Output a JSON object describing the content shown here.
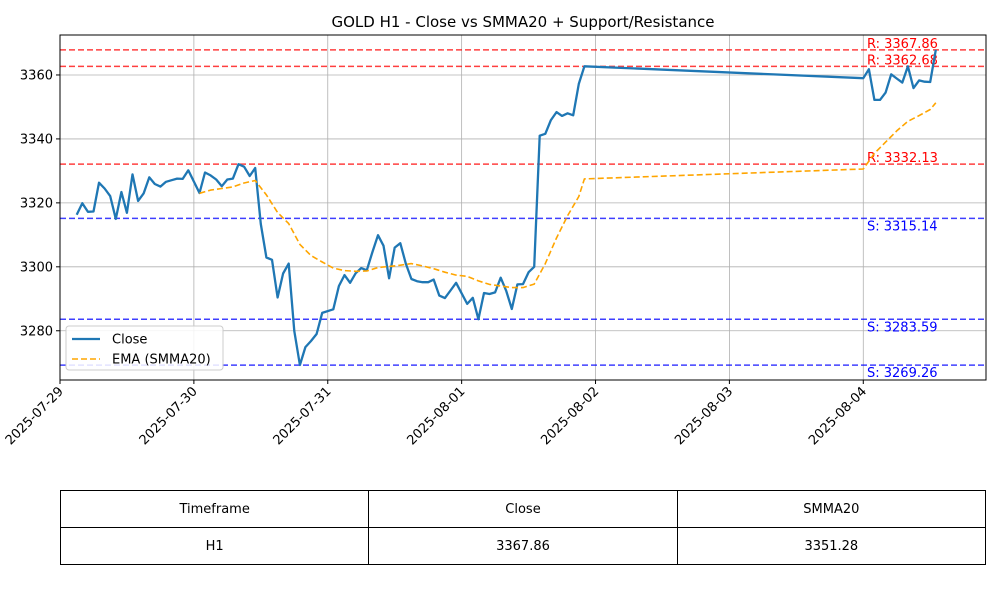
{
  "chart_data": {
    "type": "line",
    "title": "GOLD H1 - Close vs SMMA20 + Support/Resistance",
    "xlabel": "",
    "ylabel": "",
    "x_range": [
      "2025-07-29 00:00",
      "2025-08-04 22:00"
    ],
    "ylim": [
      3264.6,
      3372.5
    ],
    "x_ticks": [
      "2025-07-29",
      "2025-07-30",
      "2025-07-31",
      "2025-08-01",
      "2025-08-02",
      "2025-08-03",
      "2025-08-04"
    ],
    "y_ticks": [
      3280,
      3300,
      3320,
      3340,
      3360
    ],
    "grid": true,
    "legend_position": "lower-left",
    "series": [
      {
        "name": "Close",
        "color": "#1f77b4",
        "style": "solid",
        "points": [
          [
            "2025-07-29 03:00",
            3316.3
          ],
          [
            "2025-07-29 04:00",
            3319.9
          ],
          [
            "2025-07-29 05:00",
            3317.2
          ],
          [
            "2025-07-29 06:00",
            3317.3
          ],
          [
            "2025-07-29 07:00",
            3326.3
          ],
          [
            "2025-07-29 08:00",
            3324.5
          ],
          [
            "2025-07-29 09:00",
            3322.1
          ],
          [
            "2025-07-29 10:00",
            3315.0
          ],
          [
            "2025-07-29 11:00",
            3323.4
          ],
          [
            "2025-07-29 12:00",
            3316.9
          ],
          [
            "2025-07-29 13:00",
            3328.9
          ],
          [
            "2025-07-29 14:00",
            3320.6
          ],
          [
            "2025-07-29 15:00",
            3323.0
          ],
          [
            "2025-07-29 16:00",
            3328.0
          ],
          [
            "2025-07-29 17:00",
            3325.9
          ],
          [
            "2025-07-29 18:00",
            3325.1
          ],
          [
            "2025-07-29 19:00",
            3326.6
          ],
          [
            "2025-07-29 20:00",
            3327.1
          ],
          [
            "2025-07-29 21:00",
            3327.6
          ],
          [
            "2025-07-29 22:00",
            3327.5
          ],
          [
            "2025-07-29 23:00",
            3330.2
          ],
          [
            "2025-07-30 01:00",
            3323.1
          ],
          [
            "2025-07-30 02:00",
            3329.5
          ],
          [
            "2025-07-30 03:00",
            3328.6
          ],
          [
            "2025-07-30 04:00",
            3327.3
          ],
          [
            "2025-07-30 05:00",
            3325.2
          ],
          [
            "2025-07-30 06:00",
            3327.3
          ],
          [
            "2025-07-30 07:00",
            3327.6
          ],
          [
            "2025-07-30 08:00",
            3332.1
          ],
          [
            "2025-07-30 09:00",
            3331.3
          ],
          [
            "2025-07-30 10:00",
            3328.4
          ],
          [
            "2025-07-30 11:00",
            3330.9
          ],
          [
            "2025-07-30 12:00",
            3313.4
          ],
          [
            "2025-07-30 13:00",
            3302.9
          ],
          [
            "2025-07-30 14:00",
            3302.2
          ],
          [
            "2025-07-30 15:00",
            3290.4
          ],
          [
            "2025-07-30 16:00",
            3297.9
          ],
          [
            "2025-07-30 17:00",
            3301.0
          ],
          [
            "2025-07-30 18:00",
            3279.9
          ],
          [
            "2025-07-30 19:00",
            3269.3
          ],
          [
            "2025-07-30 20:00",
            3274.9
          ],
          [
            "2025-07-30 21:00",
            3276.8
          ],
          [
            "2025-07-30 22:00",
            3279.0
          ],
          [
            "2025-07-30 23:00",
            3285.6
          ],
          [
            "2025-07-31 01:00",
            3286.7
          ],
          [
            "2025-07-31 02:00",
            3294.0
          ],
          [
            "2025-07-31 03:00",
            3297.4
          ],
          [
            "2025-07-31 04:00",
            3295.0
          ],
          [
            "2025-07-31 05:00",
            3298.0
          ],
          [
            "2025-07-31 06:00",
            3299.6
          ],
          [
            "2025-07-31 07:00",
            3298.9
          ],
          [
            "2025-07-31 08:00",
            3304.6
          ],
          [
            "2025-07-31 09:00",
            3309.9
          ],
          [
            "2025-07-31 10:00",
            3306.6
          ],
          [
            "2025-07-31 11:00",
            3296.4
          ],
          [
            "2025-07-31 12:00",
            3306.0
          ],
          [
            "2025-07-31 13:00",
            3307.4
          ],
          [
            "2025-07-31 14:00",
            3300.9
          ],
          [
            "2025-07-31 15:00",
            3296.2
          ],
          [
            "2025-07-31 16:00",
            3295.5
          ],
          [
            "2025-07-31 17:00",
            3295.2
          ],
          [
            "2025-07-31 18:00",
            3295.2
          ],
          [
            "2025-07-31 19:00",
            3296.0
          ],
          [
            "2025-07-31 20:00",
            3291.0
          ],
          [
            "2025-07-31 21:00",
            3290.2
          ],
          [
            "2025-07-31 22:00",
            3292.6
          ],
          [
            "2025-07-31 23:00",
            3295.0
          ],
          [
            "2025-08-01 01:00",
            3288.4
          ],
          [
            "2025-08-01 02:00",
            3290.3
          ],
          [
            "2025-08-01 03:00",
            3283.6
          ],
          [
            "2025-08-01 04:00",
            3291.8
          ],
          [
            "2025-08-01 05:00",
            3291.5
          ],
          [
            "2025-08-01 06:00",
            3292.0
          ],
          [
            "2025-08-01 07:00",
            3296.6
          ],
          [
            "2025-08-01 08:00",
            3292.4
          ],
          [
            "2025-08-01 09:00",
            3286.8
          ],
          [
            "2025-08-01 10:00",
            3294.5
          ],
          [
            "2025-08-01 11:00",
            3294.6
          ],
          [
            "2025-08-01 12:00",
            3298.3
          ],
          [
            "2025-08-01 13:00",
            3300.0
          ],
          [
            "2025-08-01 14:00",
            3341.0
          ],
          [
            "2025-08-01 15:00",
            3341.6
          ],
          [
            "2025-08-01 16:00",
            3345.9
          ],
          [
            "2025-08-01 17:00",
            3348.4
          ],
          [
            "2025-08-01 18:00",
            3347.2
          ],
          [
            "2025-08-01 19:00",
            3348.0
          ],
          [
            "2025-08-01 20:00",
            3347.4
          ],
          [
            "2025-08-01 21:00",
            3357.2
          ],
          [
            "2025-08-01 22:00",
            3362.7
          ],
          [
            "2025-08-04 00:00",
            3359.0
          ],
          [
            "2025-08-04 01:00",
            3361.8
          ],
          [
            "2025-08-04 02:00",
            3352.2
          ],
          [
            "2025-08-04 03:00",
            3352.2
          ],
          [
            "2025-08-04 04:00",
            3354.5
          ],
          [
            "2025-08-04 05:00",
            3360.2
          ],
          [
            "2025-08-04 06:00",
            3358.9
          ],
          [
            "2025-08-04 07:00",
            3357.6
          ],
          [
            "2025-08-04 08:00",
            3362.7
          ],
          [
            "2025-08-04 09:00",
            3355.9
          ],
          [
            "2025-08-04 10:00",
            3358.3
          ],
          [
            "2025-08-04 11:00",
            3357.9
          ],
          [
            "2025-08-04 12:00",
            3357.8
          ],
          [
            "2025-08-04 13:00",
            3367.86
          ]
        ]
      },
      {
        "name": "EMA (SMMA20)",
        "color": "#ffa500",
        "style": "dashed",
        "points": [
          [
            "2025-07-30 01:00",
            3323.0
          ],
          [
            "2025-07-30 03:00",
            3324.0
          ],
          [
            "2025-07-30 05:00",
            3324.5
          ],
          [
            "2025-07-30 07:00",
            3325.0
          ],
          [
            "2025-07-30 09:00",
            3326.2
          ],
          [
            "2025-07-30 11:00",
            3327.0
          ],
          [
            "2025-07-30 13:00",
            3322.5
          ],
          [
            "2025-07-30 15:00",
            3317.0
          ],
          [
            "2025-07-30 17:00",
            3313.5
          ],
          [
            "2025-07-30 19:00",
            3307.0
          ],
          [
            "2025-07-30 21:00",
            3303.5
          ],
          [
            "2025-07-30 23:00",
            3301.5
          ],
          [
            "2025-07-31 01:00",
            3299.6
          ],
          [
            "2025-07-31 03:00",
            3298.8
          ],
          [
            "2025-07-31 05:00",
            3298.6
          ],
          [
            "2025-07-31 07:00",
            3298.7
          ],
          [
            "2025-07-31 09:00",
            3299.8
          ],
          [
            "2025-07-31 11:00",
            3300.1
          ],
          [
            "2025-07-31 13:00",
            3300.5
          ],
          [
            "2025-07-31 15:00",
            3301.0
          ],
          [
            "2025-07-31 17:00",
            3300.3
          ],
          [
            "2025-07-31 19:00",
            3299.4
          ],
          [
            "2025-07-31 21:00",
            3298.3
          ],
          [
            "2025-07-31 23:00",
            3297.4
          ],
          [
            "2025-08-01 01:00",
            3297.0
          ],
          [
            "2025-08-01 03:00",
            3295.6
          ],
          [
            "2025-08-01 05:00",
            3294.5
          ],
          [
            "2025-08-01 07:00",
            3294.0
          ],
          [
            "2025-08-01 09:00",
            3293.5
          ],
          [
            "2025-08-01 11:00",
            3293.5
          ],
          [
            "2025-08-01 13:00",
            3294.6
          ],
          [
            "2025-08-01 15:00",
            3301.0
          ],
          [
            "2025-08-01 17:00",
            3309.0
          ],
          [
            "2025-08-01 19:00",
            3316.0
          ],
          [
            "2025-08-01 21:00",
            3322.0
          ],
          [
            "2025-08-01 22:00",
            3327.5
          ],
          [
            "2025-08-04 00:00",
            3330.6
          ],
          [
            "2025-08-04 02:00",
            3335.5
          ],
          [
            "2025-08-04 04:00",
            3339.0
          ],
          [
            "2025-08-04 06:00",
            3342.5
          ],
          [
            "2025-08-04 08:00",
            3345.5
          ],
          [
            "2025-08-04 10:00",
            3347.3
          ],
          [
            "2025-08-04 12:00",
            3349.2
          ],
          [
            "2025-08-04 13:00",
            3351.28
          ]
        ]
      }
    ],
    "levels": [
      {
        "kind": "resistance",
        "value": 3367.86,
        "label": "R: 3367.86",
        "color": "#ff0000"
      },
      {
        "kind": "resistance",
        "value": 3362.68,
        "label": "R: 3362.68",
        "color": "#ff0000"
      },
      {
        "kind": "resistance",
        "value": 3332.13,
        "label": "R: 3332.13",
        "color": "#ff0000"
      },
      {
        "kind": "support",
        "value": 3315.14,
        "label": "S: 3315.14",
        "color": "#0000ff"
      },
      {
        "kind": "support",
        "value": 3283.59,
        "label": "S: 3283.59",
        "color": "#0000ff"
      },
      {
        "kind": "support",
        "value": 3269.26,
        "label": "S: 3269.26",
        "color": "#0000ff"
      }
    ]
  },
  "table": {
    "headers": [
      "Timeframe",
      "Close",
      "SMMA20"
    ],
    "rows": [
      [
        "H1",
        "3367.86",
        "3351.28"
      ]
    ]
  }
}
